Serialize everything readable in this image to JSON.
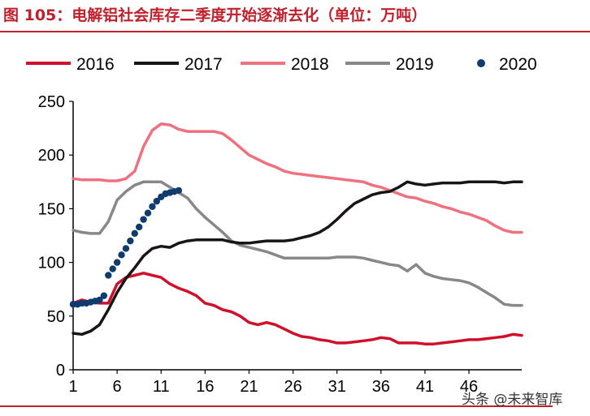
{
  "title": "图 105：电解铝社会库存二季度开始逐渐去化（单位：万吨）",
  "watermark": "头条 @未来智库",
  "chart_data": {
    "type": "line",
    "title": "图 105：电解铝社会库存二季度开始逐渐去化（单位：万吨）",
    "xlabel": "",
    "ylabel": "",
    "ylim": [
      0,
      250
    ],
    "xlim": [
      1,
      52
    ],
    "yticks": [
      0,
      50,
      100,
      150,
      200,
      250
    ],
    "xticks": [
      1,
      6,
      11,
      16,
      21,
      26,
      31,
      36,
      41,
      46
    ],
    "legend_position": "top",
    "series": [
      {
        "name": "2016",
        "color": "#d0102a",
        "style": "line",
        "x": [
          1,
          2,
          3,
          4,
          5,
          6,
          7,
          8,
          9,
          10,
          11,
          12,
          13,
          14,
          15,
          16,
          17,
          18,
          19,
          20,
          21,
          22,
          23,
          24,
          25,
          26,
          27,
          28,
          29,
          30,
          31,
          32,
          33,
          34,
          35,
          36,
          37,
          38,
          39,
          40,
          41,
          42,
          43,
          44,
          45,
          46,
          47,
          48,
          49,
          50,
          51,
          52
        ],
        "y": [
          62,
          65,
          63,
          62,
          62,
          80,
          86,
          88,
          90,
          88,
          86,
          80,
          76,
          73,
          69,
          62,
          60,
          56,
          54,
          50,
          44,
          42,
          44,
          42,
          38,
          34,
          31,
          30,
          28,
          27,
          25,
          25,
          26,
          27,
          28,
          30,
          29,
          25,
          25,
          25,
          24,
          24,
          25,
          26,
          27,
          28,
          28,
          29,
          30,
          31,
          33,
          32
        ]
      },
      {
        "name": "2017",
        "color": "#1a1414",
        "style": "line",
        "x": [
          1,
          2,
          3,
          4,
          5,
          6,
          7,
          8,
          9,
          10,
          11,
          12,
          13,
          14,
          15,
          16,
          17,
          18,
          19,
          20,
          21,
          22,
          23,
          24,
          25,
          26,
          27,
          28,
          29,
          30,
          31,
          32,
          33,
          34,
          35,
          36,
          37,
          38,
          39,
          40,
          41,
          42,
          43,
          44,
          45,
          46,
          47,
          48,
          49,
          50,
          51,
          52
        ],
        "y": [
          34,
          33,
          36,
          42,
          56,
          72,
          85,
          95,
          106,
          113,
          115,
          114,
          118,
          120,
          121,
          121,
          121,
          121,
          119,
          118,
          118,
          119,
          120,
          120,
          120,
          121,
          123,
          125,
          128,
          133,
          140,
          148,
          155,
          159,
          163,
          165,
          166,
          170,
          175,
          173,
          172,
          173,
          174,
          174,
          174,
          175,
          175,
          175,
          175,
          174,
          175,
          175
        ]
      },
      {
        "name": "2018",
        "color": "#f07080",
        "style": "line",
        "x": [
          1,
          2,
          3,
          4,
          5,
          6,
          7,
          8,
          9,
          10,
          11,
          12,
          13,
          14,
          15,
          16,
          17,
          18,
          19,
          20,
          21,
          22,
          23,
          24,
          25,
          26,
          27,
          28,
          29,
          30,
          31,
          32,
          33,
          34,
          35,
          36,
          37,
          38,
          39,
          40,
          41,
          42,
          43,
          44,
          45,
          46,
          47,
          48,
          49,
          50,
          51,
          52
        ],
        "y": [
          178,
          177,
          177,
          177,
          176,
          176,
          178,
          185,
          208,
          223,
          229,
          228,
          224,
          222,
          222,
          222,
          222,
          220,
          214,
          207,
          200,
          196,
          192,
          189,
          185,
          183,
          182,
          181,
          180,
          179,
          178,
          177,
          176,
          175,
          172,
          170,
          167,
          164,
          161,
          160,
          157,
          155,
          152,
          150,
          147,
          145,
          142,
          139,
          134,
          130,
          128,
          128
        ]
      },
      {
        "name": "2019",
        "color": "#888888",
        "style": "line",
        "x": [
          1,
          2,
          3,
          4,
          5,
          6,
          7,
          8,
          9,
          10,
          11,
          12,
          13,
          14,
          15,
          16,
          17,
          18,
          19,
          20,
          21,
          22,
          23,
          24,
          25,
          26,
          27,
          28,
          29,
          30,
          31,
          32,
          33,
          34,
          35,
          36,
          37,
          38,
          39,
          40,
          41,
          42,
          43,
          44,
          45,
          46,
          47,
          48,
          49,
          50,
          51,
          52
        ],
        "y": [
          130,
          128,
          127,
          127,
          138,
          158,
          166,
          172,
          175,
          175,
          175,
          170,
          165,
          160,
          150,
          142,
          135,
          128,
          120,
          116,
          114,
          112,
          110,
          107,
          104,
          104,
          104,
          104,
          104,
          104,
          105,
          105,
          105,
          104,
          102,
          100,
          98,
          97,
          92,
          98,
          90,
          87,
          85,
          84,
          83,
          81,
          77,
          72,
          67,
          61,
          60,
          60
        ]
      },
      {
        "name": "2020",
        "color": "#0f3b6e",
        "style": "scatter",
        "x": [
          1,
          1.5,
          2,
          2.5,
          3,
          3.5,
          4,
          4.5,
          5,
          5.5,
          6,
          6.5,
          7,
          7.5,
          8,
          8.5,
          9,
          9.5,
          10,
          10.5,
          11,
          11.5,
          12,
          12.5,
          13
        ],
        "y": [
          61,
          61,
          62,
          62,
          63,
          64,
          65,
          69,
          88,
          94,
          100,
          107,
          113,
          120,
          127,
          133,
          140,
          146,
          152,
          157,
          161,
          164,
          165,
          166,
          167
        ]
      }
    ]
  }
}
